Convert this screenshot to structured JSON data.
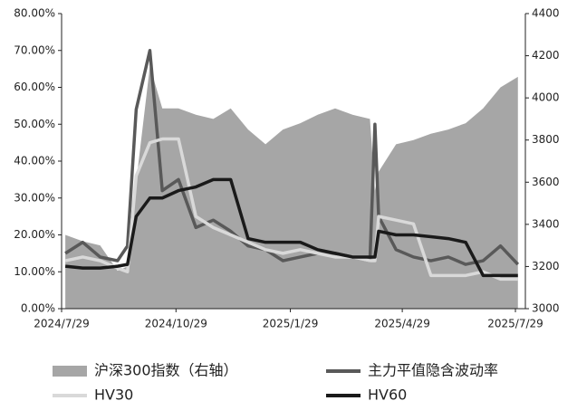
{
  "chart_data": {
    "type": "line",
    "x": [
      "2024/8/1",
      "2024/8/15",
      "2024/8/29",
      "2024/9/12",
      "2024/9/20",
      "2024/9/27",
      "2024/10/8",
      "2024/10/18",
      "2024/10/31",
      "2024/11/14",
      "2024/11/28",
      "2024/12/12",
      "2024/12/26",
      "2025/1/9",
      "2025/1/23",
      "2025/2/6",
      "2025/2/20",
      "2025/3/6",
      "2025/3/20",
      "2025/4/3",
      "2025/4/7",
      "2025/4/10",
      "2025/4/24",
      "2025/5/8",
      "2025/5/22",
      "2025/6/5",
      "2025/6/19",
      "2025/7/3",
      "2025/7/17",
      "2025/7/31"
    ],
    "xlim": [
      "2024/7/29",
      "2025/8/6"
    ],
    "xticks": [
      "2024/7/29",
      "2024/10/29",
      "2025/1/29",
      "2025/4/29",
      "2025/7/29"
    ],
    "ylim": [
      0,
      80
    ],
    "yticks": [
      {
        "value": 0,
        "label": "0.00%"
      },
      {
        "value": 10,
        "label": "10.00%"
      },
      {
        "value": 20,
        "label": "20.00%"
      },
      {
        "value": 30,
        "label": "30.00%"
      },
      {
        "value": 40,
        "label": "40.00%"
      },
      {
        "value": 50,
        "label": "50.00%"
      },
      {
        "value": 60,
        "label": "60.00%"
      },
      {
        "value": 70,
        "label": "70.00%"
      },
      {
        "value": 80,
        "label": "80.00%"
      }
    ],
    "y2lim": [
      3000,
      4400
    ],
    "y2ticks": [
      3000,
      3200,
      3400,
      3600,
      3800,
      4000,
      4200,
      4400
    ],
    "series": [
      {
        "name": "沪深300指数（右轴）",
        "kind": "area",
        "axis": "y2",
        "color": "#a6a6a6",
        "values": [
          3350,
          3320,
          3300,
          3180,
          3200,
          3600,
          4150,
          3950,
          3950,
          3920,
          3900,
          3950,
          3850,
          3780,
          3850,
          3880,
          3920,
          3950,
          3920,
          3900,
          3560,
          3650,
          3780,
          3800,
          3830,
          3850,
          3880,
          3950,
          4050,
          4100
        ]
      },
      {
        "name": "主力平值隐含波动率",
        "color": "#595959",
        "values": [
          15,
          18,
          14,
          13,
          17,
          54,
          70,
          32,
          35,
          22,
          24,
          21,
          17,
          16,
          13,
          14,
          15,
          15,
          14,
          13,
          50,
          25,
          16,
          14,
          13,
          14,
          12,
          13,
          17,
          12
        ]
      },
      {
        "name": "HV30",
        "color": "#d9d9d9",
        "values": [
          13,
          14,
          13,
          11,
          10,
          36,
          45,
          46,
          46,
          25,
          22,
          20,
          18,
          16,
          15,
          16,
          15,
          14,
          14,
          13,
          13,
          25,
          24,
          23,
          9,
          9,
          9,
          10,
          8,
          8
        ]
      },
      {
        "name": "HV60",
        "color": "#1a1a1a",
        "values": [
          11.5,
          11,
          11,
          11.5,
          12,
          25,
          30,
          30,
          32,
          33,
          35,
          35,
          19,
          18,
          18,
          18,
          16,
          15,
          14,
          14,
          14,
          21,
          20,
          20,
          19.5,
          19,
          18,
          9,
          9,
          9
        ]
      }
    ]
  }
}
